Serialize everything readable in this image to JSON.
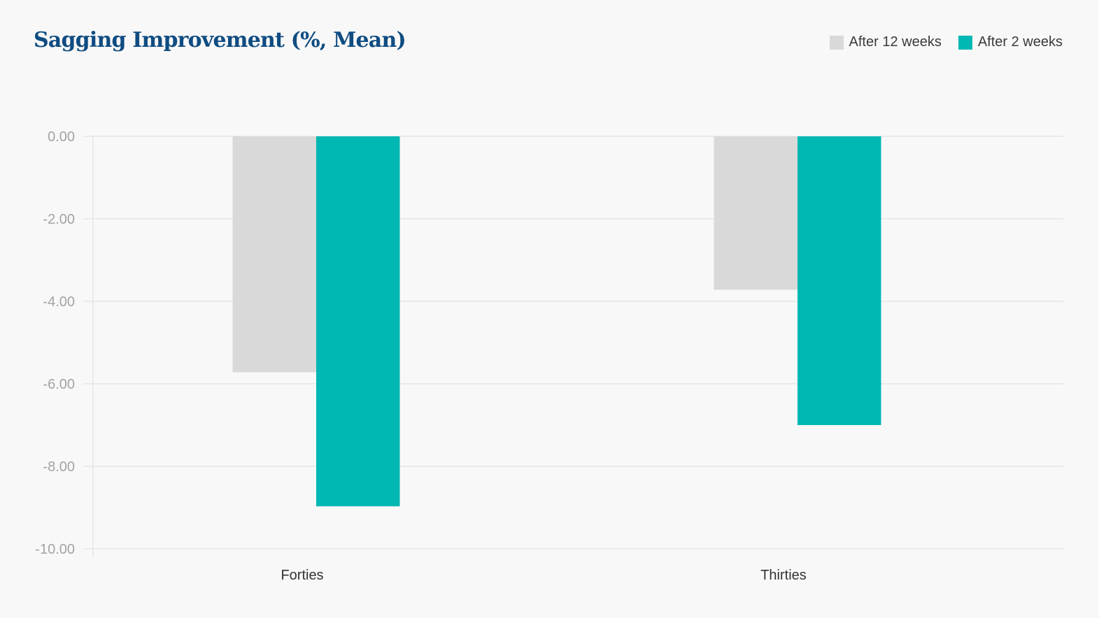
{
  "chart_data": {
    "type": "bar",
    "title": "Sagging Improvement (%, Mean)",
    "xlabel": "",
    "ylabel": "",
    "categories": [
      "Forties",
      "Thirties"
    ],
    "series": [
      {
        "name": "After 12 weeks",
        "color": "#d9d9d9",
        "values": [
          -5.72,
          -3.72
        ]
      },
      {
        "name": "After 2 weeks",
        "color": "#00b8b3",
        "values": [
          -8.97,
          -7.0
        ]
      }
    ],
    "ylim": [
      -10,
      0
    ],
    "yticks": [
      "0.00",
      "-2.00",
      "-4.00",
      "-6.00",
      "-8.00",
      "-10.00"
    ],
    "grid": true,
    "legend_position": "top-right"
  }
}
